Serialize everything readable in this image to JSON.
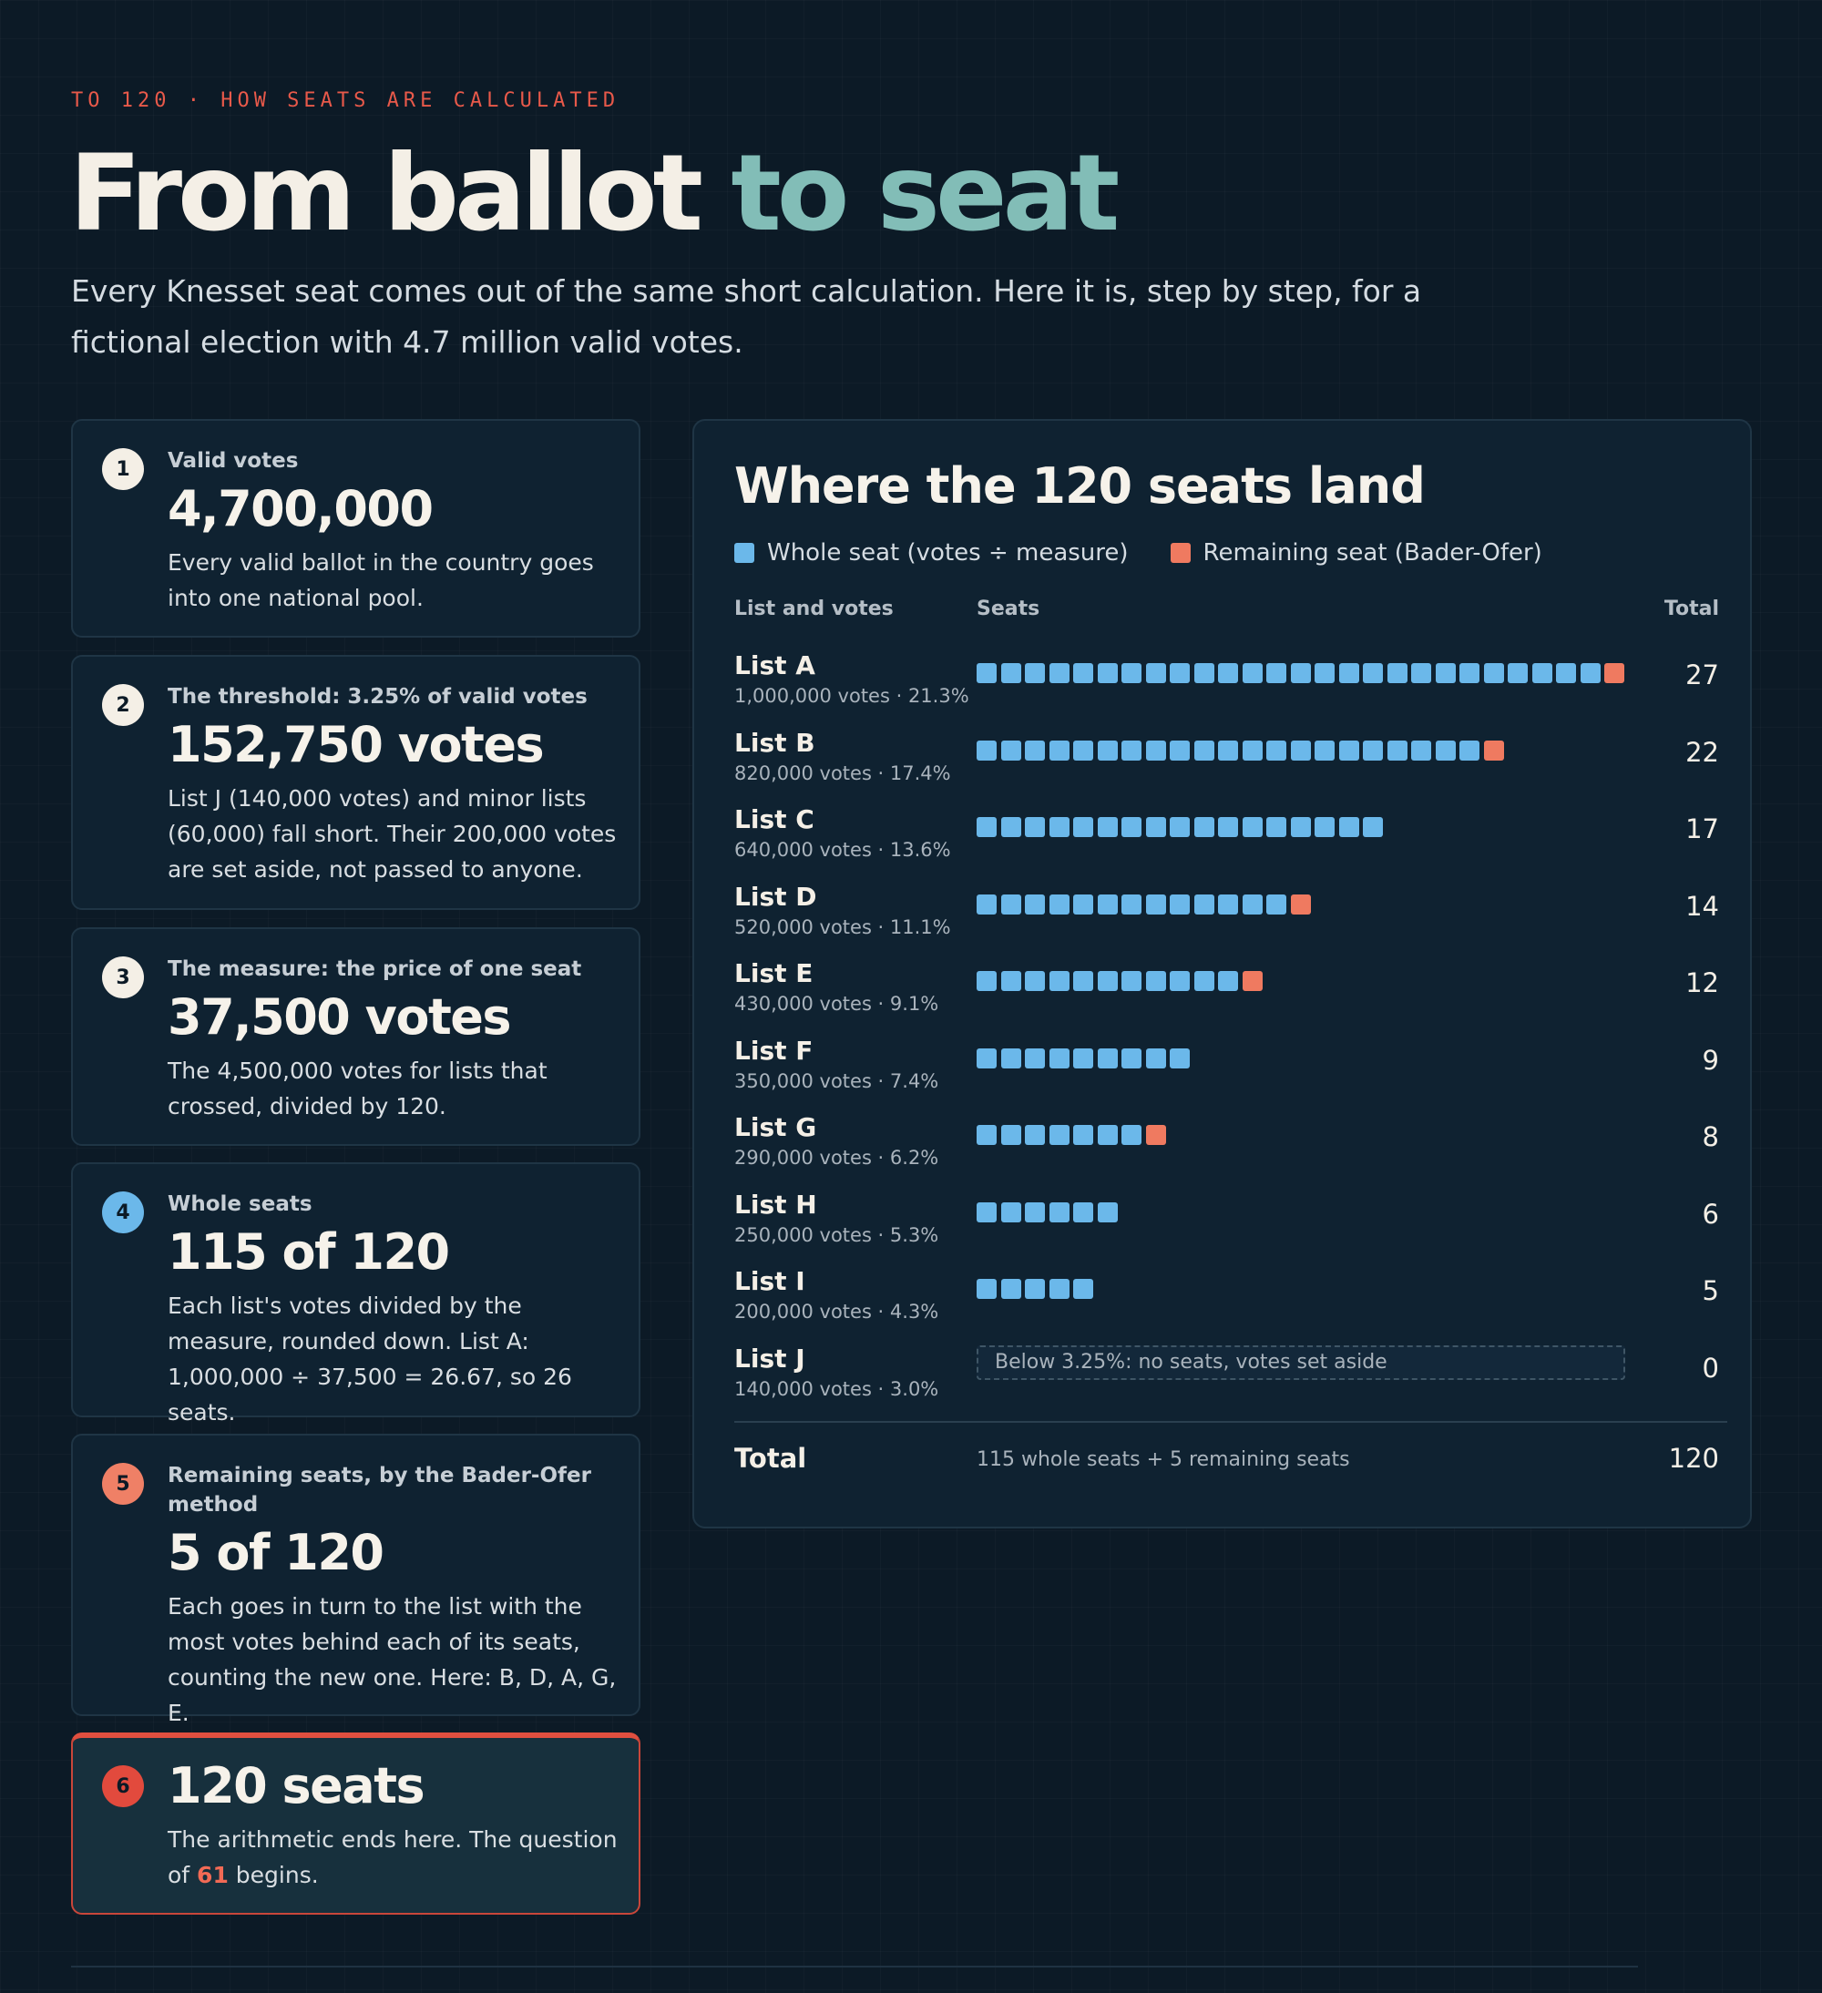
{
  "header": {
    "kicker": "TO 120 · HOW SEATS ARE CALCULATED",
    "title_main": "From ballot ",
    "title_accent": "to seat",
    "intro": "Every Knesset seat comes out of the same short calculation. Here it is, step by step, for a fictional election with 4.7 million valid votes."
  },
  "steps": [
    {
      "num": "1",
      "label": "Valid votes",
      "big": "4,700,000",
      "desc": "Every valid ballot in the country goes into one national pool."
    },
    {
      "num": "2",
      "label": "The threshold: 3.25% of valid votes",
      "big": "152,750 votes",
      "desc": "List J (140,000 votes) and minor lists (60,000) fall short. Their 200,000 votes are set aside, not passed to anyone."
    },
    {
      "num": "3",
      "label": "The measure: the price of one seat",
      "big": "37,500 votes",
      "desc": "The 4,500,000 votes for lists that crossed, divided by 120."
    },
    {
      "num": "4",
      "label": "Whole seats",
      "big": "115 of 120",
      "desc": "Each list's votes divided by the measure, rounded down. List A: 1,000,000 ÷ 37,500 = 26.67, so 26 seats."
    },
    {
      "num": "5",
      "label": "Remaining seats, by the Bader-Ofer method",
      "big": "5 of 120",
      "desc": "Each goes in turn to the list with the most votes behind each of its seats, counting the new one. Here: B, D, A, G, E."
    },
    {
      "num": "6",
      "big": "120 seats",
      "desc_pre": "The arithmetic ends here. The question of ",
      "desc_hl": "61",
      "desc_post": " begins."
    }
  ],
  "chart": {
    "title": "Where the 120 seats land",
    "legend_whole": "Whole seat (votes ÷ measure)",
    "legend_remaining": "Remaining seat (Bader-Ofer)",
    "col_list": "List and votes",
    "col_seats": "Seats",
    "col_total": "Total",
    "below_note": "Below 3.25%: no seats, votes set aside",
    "total_label": "Total",
    "total_desc": "115 whole seats + 5 remaining seats",
    "total_value": "120"
  },
  "colors": {
    "whole": "#6bb8ea",
    "remaining": "#ef7a60",
    "accent": "#82bdb7",
    "kicker": "#e8594a"
  },
  "chart_data": {
    "type": "bar",
    "categories": [
      "List A",
      "List B",
      "List C",
      "List D",
      "List E",
      "List F",
      "List G",
      "List H",
      "List I",
      "List J"
    ],
    "votes": [
      "1,000,000 votes · 21.3%",
      "820,000 votes · 17.4%",
      "640,000 votes · 13.6%",
      "520,000 votes · 11.1%",
      "430,000 votes · 9.1%",
      "350,000 votes · 7.4%",
      "290,000 votes · 6.2%",
      "250,000 votes · 5.3%",
      "200,000 votes · 4.3%",
      "140,000 votes · 3.0%"
    ],
    "series": [
      {
        "name": "Whole seat (votes ÷ measure)",
        "values": [
          26,
          21,
          17,
          13,
          11,
          9,
          7,
          6,
          5,
          0
        ]
      },
      {
        "name": "Remaining seat (Bader-Ofer)",
        "values": [
          1,
          1,
          0,
          1,
          1,
          0,
          1,
          0,
          0,
          0
        ]
      }
    ],
    "totals": [
      27,
      22,
      17,
      14,
      12,
      9,
      8,
      6,
      5,
      0
    ],
    "title": "Where the 120 seats land"
  }
}
